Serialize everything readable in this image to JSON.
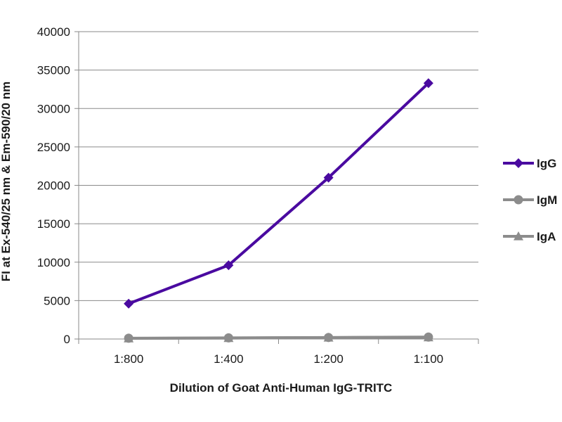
{
  "chart_data": {
    "type": "line",
    "title": "",
    "xlabel": "Dilution of Goat Anti-Human IgG-TRITC",
    "ylabel": "FI at Ex-540/25 nm & Em-590/20 nm",
    "categories": [
      "1:800",
      "1:400",
      "1:200",
      "1:100"
    ],
    "ylim": [
      0,
      40000
    ],
    "yticks": [
      0,
      5000,
      10000,
      15000,
      20000,
      25000,
      30000,
      35000,
      40000
    ],
    "grid": true,
    "legend_position": "right",
    "series": [
      {
        "name": "IgG",
        "values": [
          4600,
          9600,
          21000,
          33300
        ],
        "color": "#4a0aa0",
        "marker": "diamond"
      },
      {
        "name": "IgM",
        "values": [
          100,
          150,
          200,
          250
        ],
        "color": "#8c8c8c",
        "marker": "circle"
      },
      {
        "name": "IgA",
        "values": [
          80,
          120,
          180,
          220
        ],
        "color": "#8c8c8c",
        "marker": "triangle"
      }
    ]
  }
}
